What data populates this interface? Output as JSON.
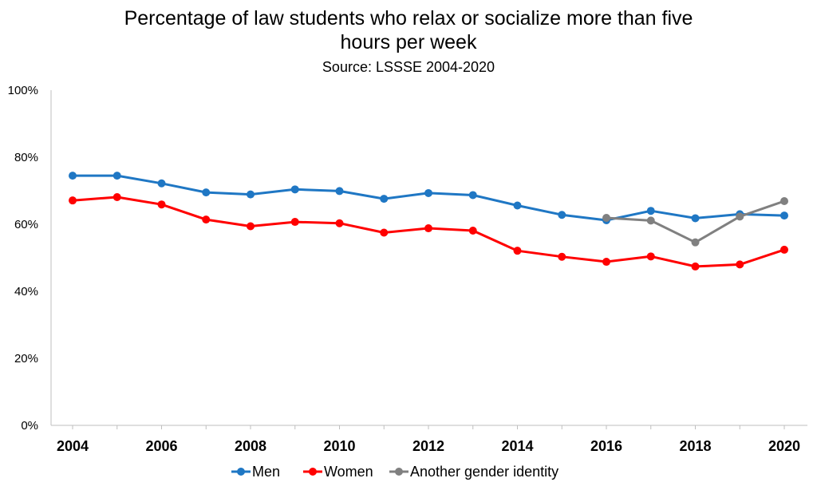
{
  "chart_data": {
    "type": "line",
    "title_line1": "Percentage of law students who relax or socialize more than five",
    "title_line2": "hours per week",
    "subtitle": "Source: LSSSE 2004-2020",
    "xlabel": "",
    "ylabel": "",
    "ylim": [
      0,
      100
    ],
    "yticks": [
      "0%",
      "20%",
      "40%",
      "60%",
      "80%",
      "100%"
    ],
    "xticks": [
      "2004",
      "2006",
      "2008",
      "2010",
      "2012",
      "2014",
      "2016",
      "2018",
      "2020"
    ],
    "x": [
      2004,
      2005,
      2006,
      2007,
      2008,
      2009,
      2010,
      2011,
      2012,
      2013,
      2014,
      2015,
      2016,
      2017,
      2018,
      2019,
      2020
    ],
    "grid": false,
    "legend": "bottom",
    "series": [
      {
        "name": "Men",
        "color": "#1f77c4",
        "x": [
          2004,
          2005,
          2006,
          2007,
          2008,
          2009,
          2010,
          2011,
          2012,
          2013,
          2014,
          2015,
          2016,
          2017,
          2018,
          2019,
          2020
        ],
        "values": [
          74.5,
          74.5,
          72.2,
          69.5,
          68.9,
          70.4,
          69.9,
          67.6,
          69.3,
          68.7,
          65.6,
          62.8,
          61.2,
          64.0,
          61.8,
          63.0,
          62.6
        ]
      },
      {
        "name": "Women",
        "color": "#ff0000",
        "x": [
          2004,
          2005,
          2006,
          2007,
          2008,
          2009,
          2010,
          2011,
          2012,
          2013,
          2014,
          2015,
          2016,
          2017,
          2018,
          2019,
          2020
        ],
        "values": [
          67.1,
          68.1,
          65.9,
          61.4,
          59.4,
          60.7,
          60.3,
          57.5,
          58.8,
          58.1,
          52.1,
          50.3,
          48.8,
          50.4,
          47.4,
          48.0,
          52.4
        ]
      },
      {
        "name": "Another gender identity",
        "color": "#808080",
        "x": [
          2016,
          2017,
          2018,
          2019,
          2020
        ],
        "values": [
          61.9,
          61.1,
          54.6,
          62.3,
          66.9
        ]
      }
    ]
  }
}
